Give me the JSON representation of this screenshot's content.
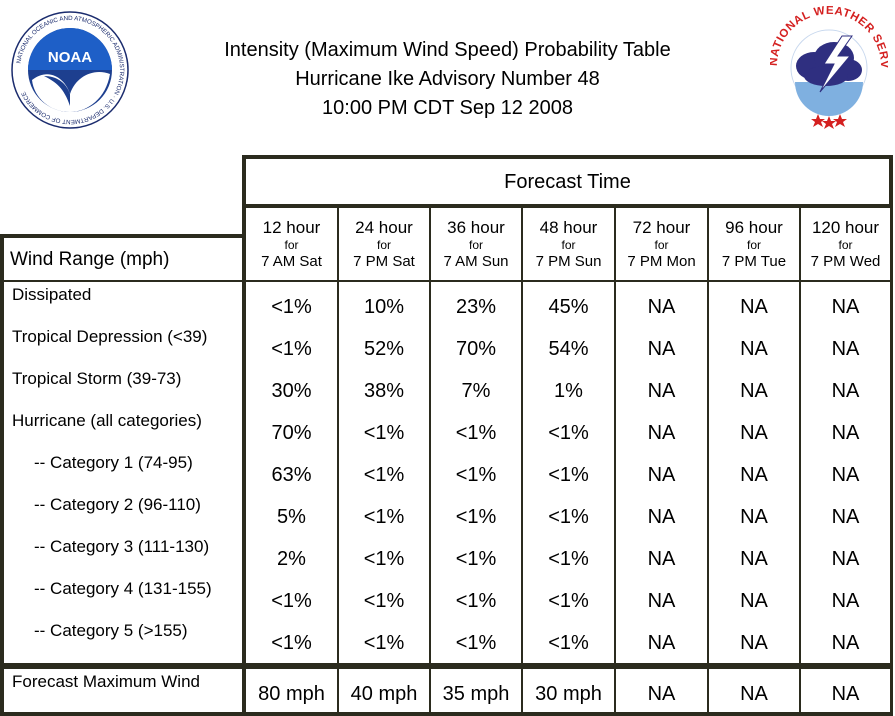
{
  "title": {
    "line1": "Intensity (Maximum Wind Speed) Probability Table",
    "line2": "Hurricane Ike Advisory Number 48",
    "line3": "10:00 PM CDT Sep 12 2008"
  },
  "logos": {
    "noaa_text": "NOAA",
    "noaa_ring": "NATIONAL OCEANIC AND ATMOSPHERIC ADMINISTRATION · U.S. DEPARTMENT OF COMMERCE",
    "nws_ring": "NATIONAL WEATHER SERVICE"
  },
  "table": {
    "forecast_time_label": "Forecast Time",
    "wind_range_label": "Wind Range (mph)",
    "columns": [
      {
        "hours": "12 hour",
        "for": "for",
        "when": "7 AM Sat"
      },
      {
        "hours": "24 hour",
        "for": "for",
        "when": "7 PM Sat"
      },
      {
        "hours": "36 hour",
        "for": "for",
        "when": "7 AM Sun"
      },
      {
        "hours": "48 hour",
        "for": "for",
        "when": "7 PM Sun"
      },
      {
        "hours": "72 hour",
        "for": "for",
        "when": "7 PM Mon"
      },
      {
        "hours": "96 hour",
        "for": "for",
        "when": "7 PM Tue"
      },
      {
        "hours": "120 hour",
        "for": "for",
        "when": "7 PM Wed"
      }
    ],
    "rows": [
      {
        "label": "Dissipated",
        "values": [
          "<1%",
          "10%",
          "23%",
          "45%",
          "NA",
          "NA",
          "NA"
        ]
      },
      {
        "label": "Tropical Depression (<39)",
        "values": [
          "<1%",
          "52%",
          "70%",
          "54%",
          "NA",
          "NA",
          "NA"
        ]
      },
      {
        "label": "Tropical Storm (39-73)",
        "values": [
          "30%",
          "38%",
          "7%",
          "1%",
          "NA",
          "NA",
          "NA"
        ]
      },
      {
        "label": "Hurricane (all categories)",
        "values": [
          "70%",
          "<1%",
          "<1%",
          "<1%",
          "NA",
          "NA",
          "NA"
        ]
      },
      {
        "label": "-- Category 1 (74-95)",
        "values": [
          "63%",
          "<1%",
          "<1%",
          "<1%",
          "NA",
          "NA",
          "NA"
        ]
      },
      {
        "label": "-- Category 2 (96-110)",
        "values": [
          "5%",
          "<1%",
          "<1%",
          "<1%",
          "NA",
          "NA",
          "NA"
        ]
      },
      {
        "label": "-- Category 3 (111-130)",
        "values": [
          "2%",
          "<1%",
          "<1%",
          "<1%",
          "NA",
          "NA",
          "NA"
        ]
      },
      {
        "label": "-- Category 4 (131-155)",
        "values": [
          "<1%",
          "<1%",
          "<1%",
          "<1%",
          "NA",
          "NA",
          "NA"
        ]
      },
      {
        "label": "-- Category 5 (>155)",
        "values": [
          "<1%",
          "<1%",
          "<1%",
          "<1%",
          "NA",
          "NA",
          "NA"
        ]
      },
      {
        "label": "Forecast Maximum Wind",
        "values": [
          "80 mph",
          "40 mph",
          "35 mph",
          "30 mph",
          "NA",
          "NA",
          "NA"
        ]
      }
    ]
  }
}
